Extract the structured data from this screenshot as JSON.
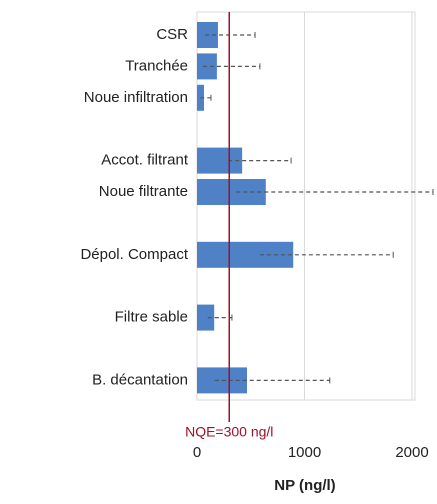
{
  "chart_data": {
    "type": "bar",
    "orientation": "horizontal",
    "categories": [
      "CSR",
      "Tranchée",
      "Noue infiltration",
      null,
      "Accot. filtrant",
      "Noue filtrante",
      null,
      "Dépol. Compact",
      null,
      "Filtre sable",
      null,
      "B. décantation"
    ],
    "values": [
      195,
      185,
      65,
      null,
      420,
      640,
      null,
      895,
      null,
      160,
      null,
      465
    ],
    "ranges": [
      [
        75,
        540
      ],
      [
        55,
        585
      ],
      [
        30,
        130
      ],
      null,
      [
        290,
        875
      ],
      [
        365,
        2195
      ],
      null,
      [
        585,
        1825
      ],
      null,
      [
        100,
        325
      ],
      null,
      [
        165,
        1235
      ]
    ],
    "color": "#4f81c7",
    "xlim": [
      0,
      2000
    ],
    "xticks": [
      0,
      1000,
      2000
    ],
    "grid": true,
    "xlabel": "NP (ng/l)",
    "reference_line": {
      "label": "NQE=300 ng/l",
      "value": 300,
      "color": "#a0102a"
    }
  }
}
